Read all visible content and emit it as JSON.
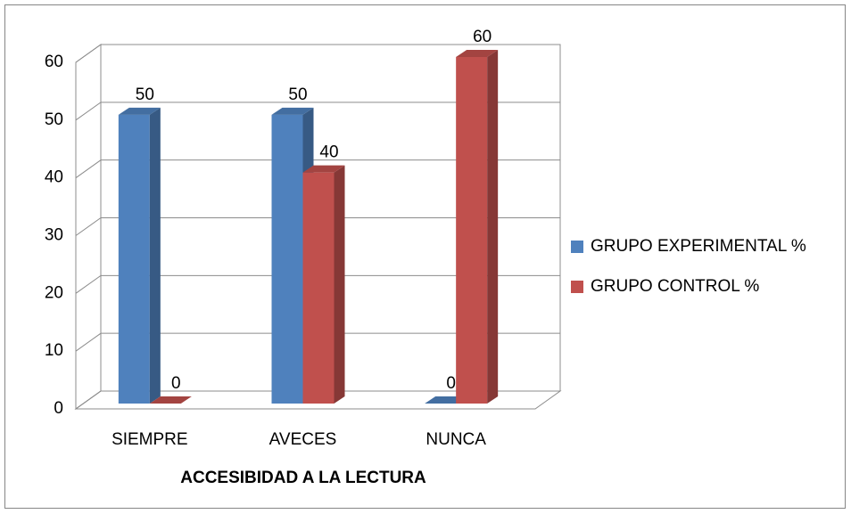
{
  "chart_data": {
    "type": "bar3d",
    "x_label": "ACCESIBIDAD A LA LECTURA",
    "categories": [
      "SIEMPRE",
      "AVECES",
      "NUNCA"
    ],
    "series": [
      {
        "name": "GRUPO EXPERIMENTAL %",
        "color": "#4f81bd",
        "values": [
          50,
          50,
          0
        ]
      },
      {
        "name": "GRUPO CONTROL %",
        "color": "#c0504d",
        "values": [
          0,
          40,
          60
        ]
      }
    ],
    "ylim": [
      0,
      60
    ],
    "yticks": [
      0,
      10,
      20,
      30,
      40,
      50,
      60
    ],
    "grid": true,
    "legend": "right"
  }
}
